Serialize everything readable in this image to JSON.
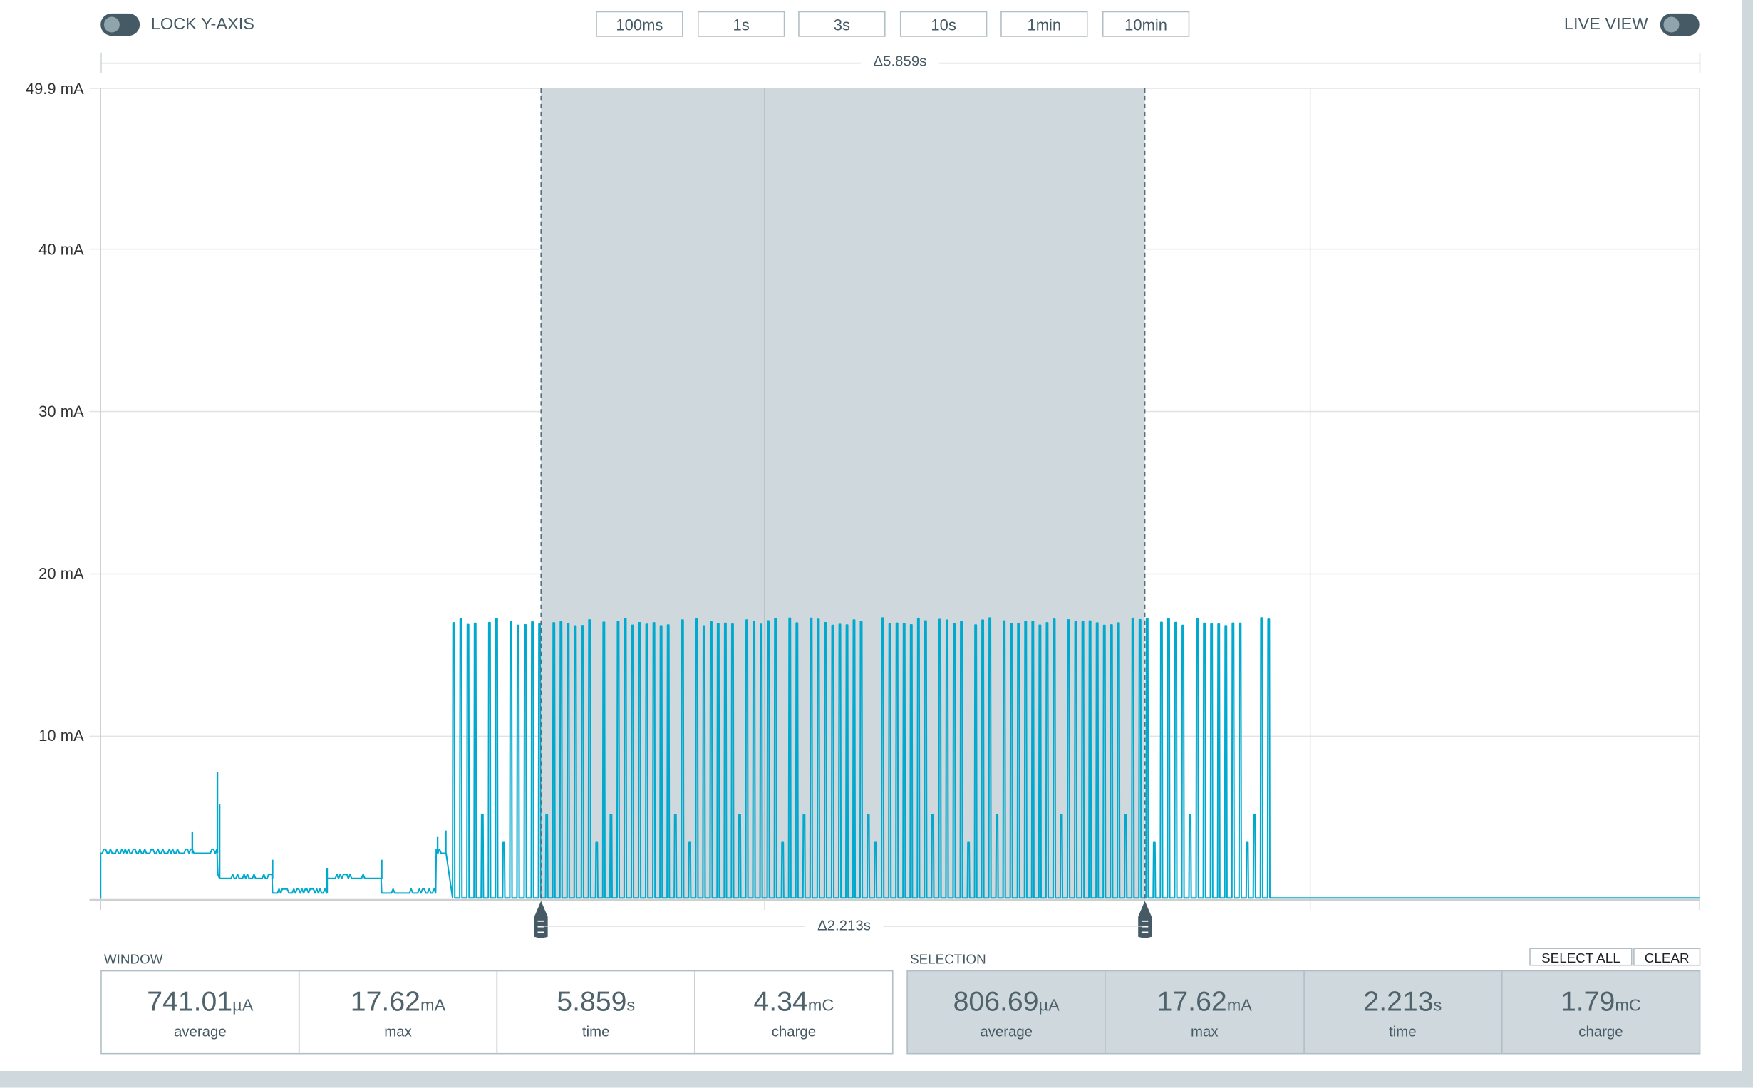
{
  "toolbar": {
    "lock_y_axis_label": "LOCK Y-AXIS",
    "lock_y_axis_on": false,
    "time_windows": [
      "100ms",
      "1s",
      "3s",
      "10s",
      "1min",
      "10min"
    ],
    "live_view_label": "LIVE VIEW",
    "live_view_on": false
  },
  "window_delta": "Δ5.859s",
  "selection_delta": "Δ2.213s",
  "colors": {
    "trace": "#00a9ce",
    "selection": "#cfd8dc",
    "handle": "#455a64",
    "text": "#455a64"
  },
  "chart_data": {
    "type": "line",
    "ylabel": "",
    "y_unit": "mA",
    "ylim": [
      0,
      49.9
    ],
    "y_ticks": [
      "49.9 mA",
      "40 mA",
      "30 mA",
      "20 mA",
      "10 mA"
    ],
    "y_tick_values": [
      49.9,
      40,
      30,
      20,
      10
    ],
    "xlim_s": [
      0,
      5.859
    ],
    "x_gridlines_s": [
      2.433,
      4.433
    ],
    "grid": true,
    "selection_s": [
      1.614,
      3.827
    ],
    "series": [
      {
        "segments": [
          {
            "t0": 0.0,
            "t1": 0.43,
            "level_mA": 2.8
          },
          {
            "t0": 0.43,
            "t1": 0.63,
            "level_mA": 1.25
          },
          {
            "t0": 0.63,
            "t1": 0.83,
            "level_mA": 0.35
          },
          {
            "t0": 0.83,
            "t1": 1.03,
            "level_mA": 1.25
          },
          {
            "t0": 1.03,
            "t1": 1.23,
            "level_mA": 0.35
          },
          {
            "t0": 1.23,
            "t1": 1.27,
            "level_mA": 2.8
          }
        ],
        "spikes": [
          {
            "t": 0.336,
            "peak_mA": 4.1
          },
          {
            "t": 0.428,
            "peak_mA": 7.8
          },
          {
            "t": 0.436,
            "peak_mA": 5.8
          },
          {
            "t": 0.63,
            "peak_mA": 2.4
          },
          {
            "t": 0.83,
            "peak_mA": 1.9
          },
          {
            "t": 1.03,
            "peak_mA": 2.4
          },
          {
            "t": 1.235,
            "peak_mA": 3.8
          },
          {
            "t": 1.265,
            "peak_mA": 4.2
          }
        ],
        "pulse_train": {
          "t_start": 1.29,
          "t_end": 4.3,
          "period_s": 0.0262,
          "peak_mA": 17.3,
          "base_mA": 0.05
        },
        "tail_level_mA": 0.05
      }
    ]
  },
  "window_stats": {
    "label": "WINDOW",
    "cells": [
      {
        "value": "741.01",
        "unit": "µA",
        "caption": "average"
      },
      {
        "value": "17.62",
        "unit": "mA",
        "caption": "max"
      },
      {
        "value": "5.859",
        "unit": "s",
        "caption": "time"
      },
      {
        "value": "4.34",
        "unit": "mC",
        "caption": "charge"
      }
    ]
  },
  "selection_stats": {
    "label": "SELECTION",
    "select_all": "SELECT ALL",
    "clear": "CLEAR",
    "cells": [
      {
        "value": "806.69",
        "unit": "µA",
        "caption": "average"
      },
      {
        "value": "17.62",
        "unit": "mA",
        "caption": "max"
      },
      {
        "value": "2.213",
        "unit": "s",
        "caption": "time"
      },
      {
        "value": "1.79",
        "unit": "mC",
        "caption": "charge"
      }
    ]
  }
}
